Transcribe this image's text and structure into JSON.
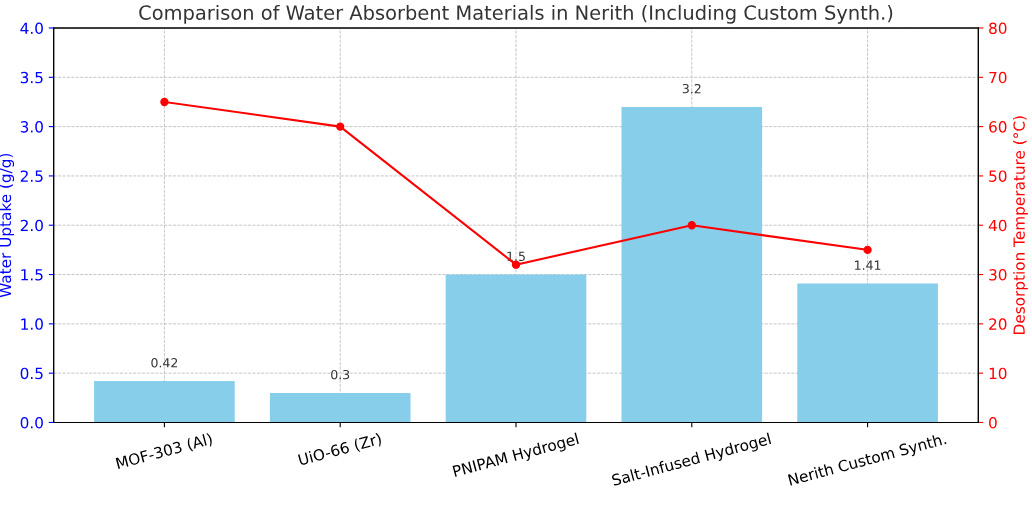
{
  "chart_data": {
    "type": "bar",
    "title": "Comparison of Water Absorbent Materials in Nerith (Including Custom Synth.)",
    "categories": [
      "MOF-303 (Al)",
      "UiO-66 (Zr)",
      "PNIPAM Hydrogel",
      "Salt-Infused Hydrogel",
      "Nerith Custom Synth."
    ],
    "ylabel": "Water Uptake (g/g)",
    "y2label": "Desorption Temperature (°C)",
    "series": [
      {
        "color": "#87ceeb",
        "values": [
          0.42,
          0.3,
          1.5,
          3.2,
          1.41
        ],
        "value_labels": [
          "0.42",
          "0.3",
          "1.5",
          "3.2",
          "1.41"
        ]
      },
      {
        "type": "line",
        "axis": "y2",
        "color": "#ff0000",
        "values": [
          65,
          60,
          32,
          40,
          35
        ],
        "marker": "circle",
        "line_style": "solid"
      }
    ],
    "ylim": [
      0,
      4
    ],
    "yticks": [
      {
        "value": 0,
        "label": "0.0"
      },
      {
        "value": 0.5,
        "label": "0.5"
      },
      {
        "value": 1,
        "label": "1.0"
      },
      {
        "value": 1.5,
        "label": "1.5"
      },
      {
        "value": 2,
        "label": "2.0"
      },
      {
        "value": 2.5,
        "label": "2.5"
      },
      {
        "value": 3,
        "label": "3.0"
      },
      {
        "value": 3.5,
        "label": "3.5"
      },
      {
        "value": 4,
        "label": "4.0"
      }
    ],
    "y2lim": [
      0,
      80
    ],
    "y2ticks": [
      0,
      10,
      20,
      30,
      40,
      50,
      60,
      70,
      80
    ],
    "grid": true
  }
}
